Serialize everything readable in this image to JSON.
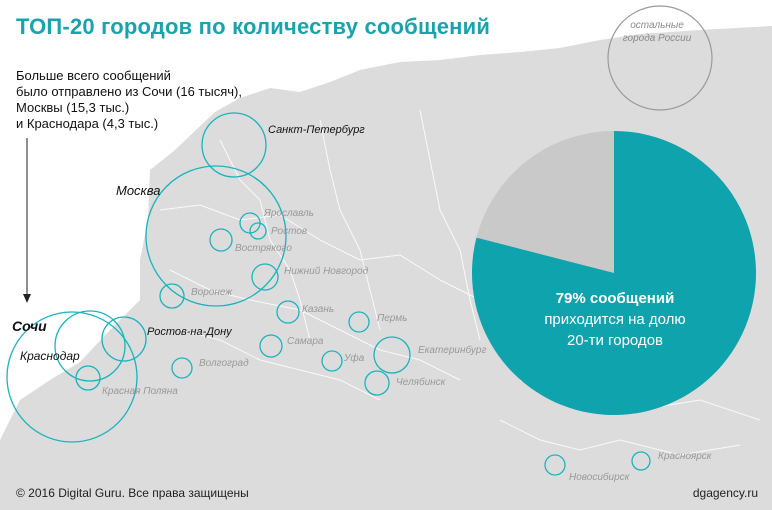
{
  "title": "ТОП-20 городов по количеству сообщений",
  "note": {
    "line1": "Больше всего сообщений",
    "line2": "было отправлено из Сочи (16 тысяч),",
    "line3": "Москвы (15,3 тыс.)",
    "line4": "и Краснодара (4,3 тыс.)"
  },
  "pie": {
    "percent_label": "79% сообщений",
    "line2": "приходится на долю",
    "line3": "20-ти городов",
    "share": 0.79,
    "color": "#0fa3ad"
  },
  "others_label": {
    "line1": "остальные",
    "line2": "города России"
  },
  "cities": {
    "spb": "Санкт-Петербург",
    "moscow": "Москва",
    "yaroslavl": "Ярославль",
    "rostov": "Ростов",
    "vostryakovo": "Вострякого",
    "nizhny": "Нижний Новгород",
    "voronezh": "Воронеж",
    "kazan": "Казань",
    "perm": "Пермь",
    "samara": "Самара",
    "ufa": "Уфа",
    "ekb": "Екатеринбург",
    "chelyabinsk": "Челябинск",
    "volgograd": "Волгоград",
    "sochi": "Сочи",
    "krasnodar": "Краснодар",
    "rostov_don": "Ростов-на-Дону",
    "krasnaya_polyana": "Красная Поляна",
    "novosibirsk": "Новосибирск",
    "krasnoyarsk": "Красноярск"
  },
  "colors": {
    "accent": "#1aa3ad",
    "map": "#dcdcdc",
    "ring": "#1ab3bd"
  },
  "footer": {
    "copyright": "© 2016 Digital Guru. Все права защищены",
    "site": "dgagency.ru"
  }
}
